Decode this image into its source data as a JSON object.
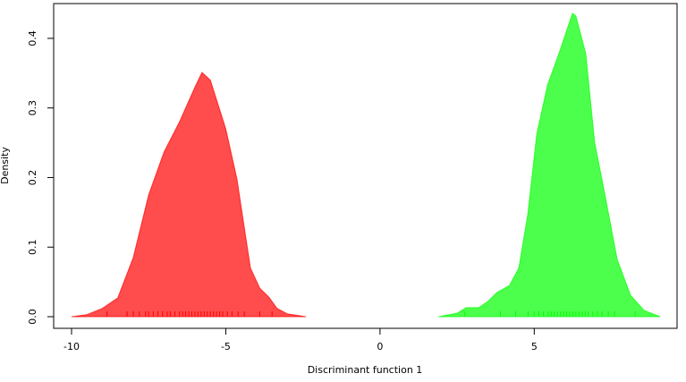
{
  "chart_data": {
    "type": "area",
    "x_label": "Discriminant function 1",
    "y_label": "Density",
    "xlim": [
      -10.58,
      9.63
    ],
    "ylim": [
      -0.0167,
      0.45
    ],
    "xticks": [
      -10,
      -5,
      0,
      5
    ],
    "yticks": [
      {
        "value": 0,
        "label": "0.0"
      },
      0.1,
      0.2,
      0.3,
      0.4
    ],
    "fill_opacity": 0.7,
    "series": [
      {
        "color": "#ff0000",
        "x": [
          -10,
          -9.5,
          -9,
          -8.5,
          -8,
          -7.5,
          -7,
          -6.5,
          -6,
          -5.77,
          -5.5,
          -5,
          -4.64,
          -4.2,
          -3.9,
          -3.6,
          -3.34,
          -3,
          -2.4
        ],
        "values": [
          0,
          0.003,
          0.012,
          0.027,
          0.085,
          0.175,
          0.237,
          0.28,
          0.33,
          0.351,
          0.34,
          0.27,
          0.198,
          0.07,
          0.041,
          0.028,
          0.012,
          0.004,
          0
        ],
        "rug": [
          -8.85,
          -8.2,
          -8.0,
          -7.8,
          -7.6,
          -7.5,
          -7.35,
          -7.2,
          -7.05,
          -6.9,
          -6.8,
          -6.65,
          -6.5,
          -6.4,
          -6.3,
          -6.2,
          -6.1,
          -6.0,
          -5.9,
          -5.8,
          -5.7,
          -5.6,
          -5.5,
          -5.4,
          -5.3,
          -5.2,
          -5.1,
          -4.95,
          -4.8,
          -4.6,
          -4.4,
          -3.9,
          -3.5
        ]
      },
      {
        "color": "#00ff00",
        "x": [
          1.9,
          2.5,
          2.8,
          3.2,
          3.5,
          3.8,
          4.2,
          4.5,
          4.79,
          5.08,
          5.43,
          5.8,
          6.24,
          6.35,
          6.67,
          6.96,
          7.25,
          7.69,
          8.12,
          8.56,
          9.08
        ],
        "values": [
          0,
          0.005,
          0.013,
          0.013,
          0.022,
          0.035,
          0.045,
          0.07,
          0.147,
          0.262,
          0.333,
          0.378,
          0.436,
          0.432,
          0.378,
          0.25,
          0.185,
          0.082,
          0.031,
          0.009,
          0
        ],
        "rug": [
          2.75,
          3.9,
          4.4,
          4.8,
          5.0,
          5.15,
          5.3,
          5.45,
          5.55,
          5.65,
          5.75,
          5.85,
          5.95,
          6.05,
          6.15,
          6.25,
          6.35,
          6.45,
          6.55,
          6.65,
          6.75,
          6.9,
          7.05,
          7.2,
          7.4,
          7.6,
          8.27
        ]
      }
    ]
  }
}
